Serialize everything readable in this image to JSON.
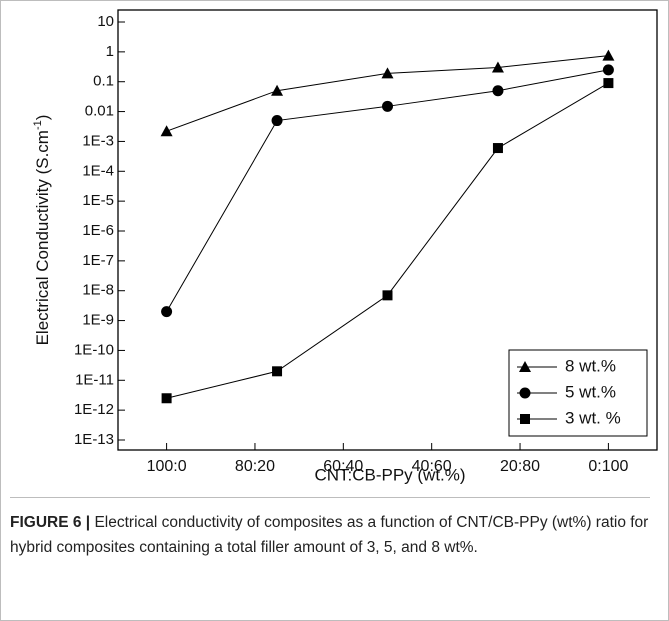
{
  "chart_data": {
    "type": "line",
    "x_label": "CNT:CB-PPy (wt.%)",
    "y_label": "Electrical Conductivity (S.cm",
    "y_label_sup": "-1",
    "y_label_end": ")",
    "x": [
      100,
      75,
      50,
      25,
      0
    ],
    "xlim": [
      111,
      -11
    ],
    "xticks": [
      {
        "value": 100,
        "label": "100:0"
      },
      {
        "value": 80,
        "label": "80:20"
      },
      {
        "value": 60,
        "label": "60:40"
      },
      {
        "value": 40,
        "label": "40:60"
      },
      {
        "value": 20,
        "label": "20:80"
      },
      {
        "value": 0,
        "label": "0:100"
      }
    ],
    "log_y": true,
    "ylim": [
      1e-13,
      10
    ],
    "yticks": [
      10,
      1,
      0.1,
      0.01,
      {
        "value": 0.001,
        "label": "1E-3"
      },
      {
        "value": 0.0001,
        "label": "1E-4"
      },
      {
        "value": 1e-05,
        "label": "1E-5"
      },
      {
        "value": 1e-06,
        "label": "1E-6"
      },
      {
        "value": 1e-07,
        "label": "1E-7"
      },
      {
        "value": 1e-08,
        "label": "1E-8"
      },
      {
        "value": 1e-09,
        "label": "1E-9"
      },
      {
        "value": 1e-10,
        "label": "1E-10"
      },
      {
        "value": 1e-11,
        "label": "1E-11"
      },
      {
        "value": 1e-12,
        "label": "1E-12"
      },
      {
        "value": 1e-13,
        "label": "1E-13"
      }
    ],
    "legend": "lower right",
    "series": [
      {
        "name": "8 wt.%",
        "color": "#000000",
        "marker": "triangle",
        "values": [
          0.0022,
          0.05,
          0.19,
          0.3,
          0.75
        ]
      },
      {
        "name": "5 wt.%",
        "color": "#000000",
        "marker": "circle",
        "values": [
          2e-09,
          0.005,
          0.015,
          0.05,
          0.25
        ]
      },
      {
        "name": "3 wt. %",
        "color": "#000000",
        "marker": "square",
        "values": [
          2.5e-12,
          2e-11,
          7e-09,
          0.0006,
          0.09
        ]
      }
    ]
  },
  "caption": {
    "label": "FIGURE 6 |",
    "text": "Electrical conductivity of composites as a function of CNT/CB-PPy (wt%) ratio for hybrid composites containing a total filler amount of 3, 5, and 8 wt%."
  }
}
